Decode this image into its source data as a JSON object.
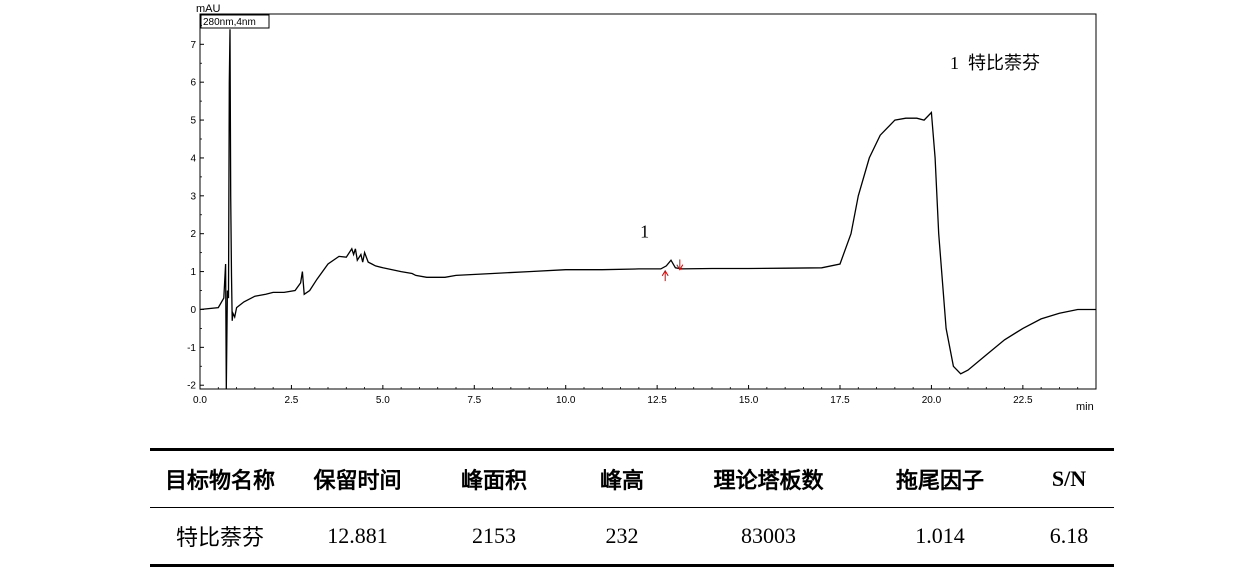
{
  "chart_data": {
    "type": "line",
    "detector_label": "280nm,4nm",
    "y_unit": "mAU",
    "x_unit": "min",
    "xlim": [
      0.0,
      24.5
    ],
    "ylim": [
      -2.1,
      7.8
    ],
    "x_ticks": [
      "0.0",
      "2.5",
      "5.0",
      "7.5",
      "10.0",
      "12.5",
      "15.0",
      "17.5",
      "20.0",
      "22.5"
    ],
    "y_ticks": [
      "-2",
      "-1",
      "0",
      "1",
      "2",
      "3",
      "4",
      "5",
      "6",
      "7"
    ],
    "legend_text": "1  特比萘芬",
    "peak_label": "1",
    "peak": {
      "number": "1",
      "retention_time": 12.881,
      "height_mAU": 0.23
    },
    "series": [
      {
        "x": [
          0.0,
          0.5,
          0.65,
          0.7,
          0.72,
          0.75,
          0.78,
          0.8,
          0.82,
          0.84,
          0.86,
          0.88,
          0.9,
          0.95,
          1.0,
          1.2,
          1.5,
          1.8,
          2.0,
          2.3,
          2.6,
          2.75,
          2.8,
          2.85,
          3.0,
          3.2,
          3.5,
          3.8,
          4.0,
          4.15,
          4.2,
          4.25,
          4.3,
          4.4,
          4.45,
          4.5,
          4.6,
          4.7,
          4.8,
          5.0,
          5.5,
          5.8,
          5.9,
          6.2,
          6.7,
          7.0,
          8.0,
          9.0,
          10.0,
          11.0,
          12.0,
          12.6,
          12.75,
          12.88,
          13.0,
          13.15,
          14.0,
          15.0,
          16.0,
          17.0,
          17.5,
          17.8,
          18.0,
          18.3,
          18.6,
          19.0,
          19.3,
          19.6,
          19.8,
          20.0,
          20.1,
          20.2,
          20.4,
          20.6,
          20.8,
          21.0,
          21.5,
          22.0,
          22.5,
          23.0,
          23.5,
          24.0,
          24.5
        ],
        "y": [
          0.0,
          0.05,
          0.3,
          1.2,
          -2.1,
          0.5,
          0.3,
          6.0,
          7.4,
          3.0,
          0.9,
          -0.3,
          -0.1,
          -0.2,
          0.05,
          0.2,
          0.35,
          0.4,
          0.45,
          0.45,
          0.5,
          0.7,
          1.0,
          0.4,
          0.5,
          0.8,
          1.2,
          1.4,
          1.38,
          1.6,
          1.45,
          1.6,
          1.3,
          1.45,
          1.25,
          1.5,
          1.25,
          1.2,
          1.15,
          1.1,
          1.0,
          0.95,
          0.9,
          0.85,
          0.85,
          0.9,
          0.95,
          1.0,
          1.05,
          1.05,
          1.07,
          1.07,
          1.15,
          1.3,
          1.1,
          1.07,
          1.08,
          1.08,
          1.09,
          1.1,
          1.2,
          2.0,
          3.0,
          4.0,
          4.6,
          5.0,
          5.05,
          5.05,
          5.0,
          5.2,
          4.0,
          2.0,
          -0.5,
          -1.5,
          -1.7,
          -1.6,
          -1.2,
          -0.8,
          -0.5,
          -0.25,
          -0.1,
          0.0,
          0.0
        ]
      }
    ]
  },
  "table": {
    "headers": [
      "目标物名称",
      "保留时间",
      "峰面积",
      "峰高",
      "理论塔板数",
      "拖尾因子",
      "S/N"
    ],
    "rows": [
      [
        "特比萘芬",
        "12.881",
        "2153",
        "232",
        "83003",
        "1.014",
        "6.18"
      ]
    ]
  },
  "colors": {
    "trace": "#000000",
    "peak_marker": "#e00000",
    "frame": "#000000"
  }
}
